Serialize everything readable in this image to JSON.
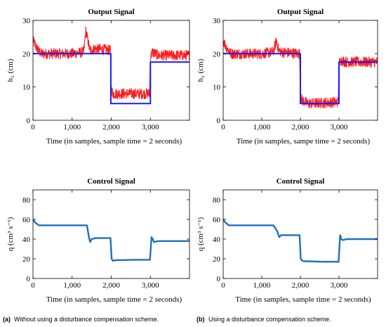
{
  "colors": {
    "signal": "#ff1a1a",
    "reference": "#1a1aff",
    "control": "#1f6fbf",
    "axis": "#000000"
  },
  "captions": {
    "a": {
      "label": "(a)",
      "text": "Without using a disturbance compensation scheme."
    },
    "b": {
      "label": "(b)",
      "text": "Using a disturbance compensation scheme."
    }
  },
  "chart_data": [
    {
      "id": "a-output",
      "type": "line",
      "title": "Output Signal",
      "xlabel": "Time (in samples, sample time = 2 seconds)",
      "ylabel": "h₂ (cm)",
      "xlim": [
        0,
        4000
      ],
      "ylim": [
        0,
        30
      ],
      "xticks": [
        0,
        1000,
        2000,
        3000
      ],
      "xticklabels": [
        "0",
        "1,000",
        "2,000",
        "3,000"
      ],
      "yticks": [
        0,
        10,
        20,
        30
      ],
      "yticklabels": [
        "0",
        "10",
        "20",
        "30"
      ],
      "series": [
        {
          "role": "reference",
          "x": [
            0,
            1990,
            1990,
            3000,
            3000,
            4000
          ],
          "y": [
            20,
            20,
            5,
            5,
            17.5,
            17.5
          ]
        },
        {
          "role": "noisy",
          "noise": 1.6,
          "x": [
            0,
            80,
            200,
            1000,
            1300,
            1350,
            1420,
            1450,
            1600,
            1980,
            2000,
            2050,
            2200,
            2980,
            3000,
            3050,
            3200,
            4000
          ],
          "y": [
            24,
            22,
            20,
            20,
            20.5,
            27,
            23,
            21,
            21.5,
            21,
            9,
            8,
            8,
            8,
            19,
            20.5,
            19.5,
            19.5
          ]
        }
      ]
    },
    {
      "id": "b-output",
      "type": "line",
      "title": "Output Signal",
      "xlabel": "Time (in samples, sampe time = 2 seconds)",
      "ylabel": "h₂ (cm)",
      "xlim": [
        0,
        4000
      ],
      "ylim": [
        0,
        30
      ],
      "xticks": [
        0,
        1000,
        2000,
        3000
      ],
      "xticklabels": [
        "0",
        "1,000",
        "2,000",
        "3,000"
      ],
      "yticks": [
        0,
        10,
        20,
        30
      ],
      "yticklabels": [
        "0",
        "10",
        "20",
        "30"
      ],
      "series": [
        {
          "role": "reference",
          "x": [
            0,
            2000,
            2000,
            3000,
            3000,
            4000
          ],
          "y": [
            20,
            20,
            5,
            5,
            17.5,
            17.5
          ]
        },
        {
          "role": "noisy",
          "noise": 1.6,
          "x": [
            0,
            80,
            200,
            1000,
            1300,
            1380,
            1440,
            1500,
            1980,
            2000,
            2050,
            2200,
            2980,
            3000,
            3050,
            3200,
            4000
          ],
          "y": [
            24,
            22,
            20,
            20,
            20.5,
            24,
            21,
            20.5,
            20,
            7,
            6,
            5,
            5.5,
            17,
            18,
            17.5,
            17.5
          ]
        }
      ]
    },
    {
      "id": "a-control",
      "type": "line",
      "title": "Control Signal",
      "xlabel": "Time (in samples, sample time = 2 seconds)",
      "ylabel": "q (cm³ s⁻¹)",
      "xlim": [
        0,
        4000
      ],
      "ylim": [
        0,
        90
      ],
      "xticks": [
        0,
        1000,
        2000,
        3000
      ],
      "xticklabels": [
        "0",
        "1,000",
        "2,000",
        "3,000"
      ],
      "yticks": [
        0,
        20,
        40,
        60,
        80
      ],
      "yticklabels": [
        "0",
        "20",
        "40",
        "60",
        "80"
      ],
      "series": [
        {
          "role": "smooth",
          "x": [
            0,
            50,
            150,
            300,
            1000,
            1380,
            1430,
            1460,
            1500,
            1600,
            1980,
            2010,
            2040,
            2100,
            2600,
            2990,
            3030,
            3060,
            3090,
            3200,
            4000
          ],
          "y": [
            60,
            57,
            54,
            54,
            54,
            54,
            42,
            37,
            40,
            41,
            41,
            20,
            18,
            18.5,
            19,
            19,
            42,
            40,
            37,
            38,
            38
          ]
        }
      ]
    },
    {
      "id": "b-control",
      "type": "line",
      "title": "Control Signal",
      "xlabel": "Time (in samples, sample time = 2 seconds)",
      "ylabel": "q (cm³ s⁻¹)",
      "xlim": [
        0,
        4000
      ],
      "ylim": [
        0,
        90
      ],
      "xticks": [
        0,
        1000,
        2000,
        3000
      ],
      "xticklabels": [
        "0",
        "1,000",
        "2,000",
        "3,000"
      ],
      "yticks": [
        0,
        20,
        40,
        60,
        80
      ],
      "yticklabels": [
        "0",
        "20",
        "40",
        "60",
        "80"
      ],
      "series": [
        {
          "role": "smooth",
          "x": [
            0,
            50,
            150,
            300,
            1000,
            1300,
            1400,
            1450,
            1500,
            1600,
            1980,
            2010,
            2050,
            2100,
            2600,
            2990,
            3030,
            3060,
            3100,
            3200,
            4000
          ],
          "y": [
            60,
            57,
            54,
            54,
            54,
            54,
            48,
            42,
            44,
            44,
            44,
            20,
            18,
            17.5,
            17,
            17,
            44,
            40,
            39,
            40,
            40
          ]
        }
      ]
    }
  ]
}
